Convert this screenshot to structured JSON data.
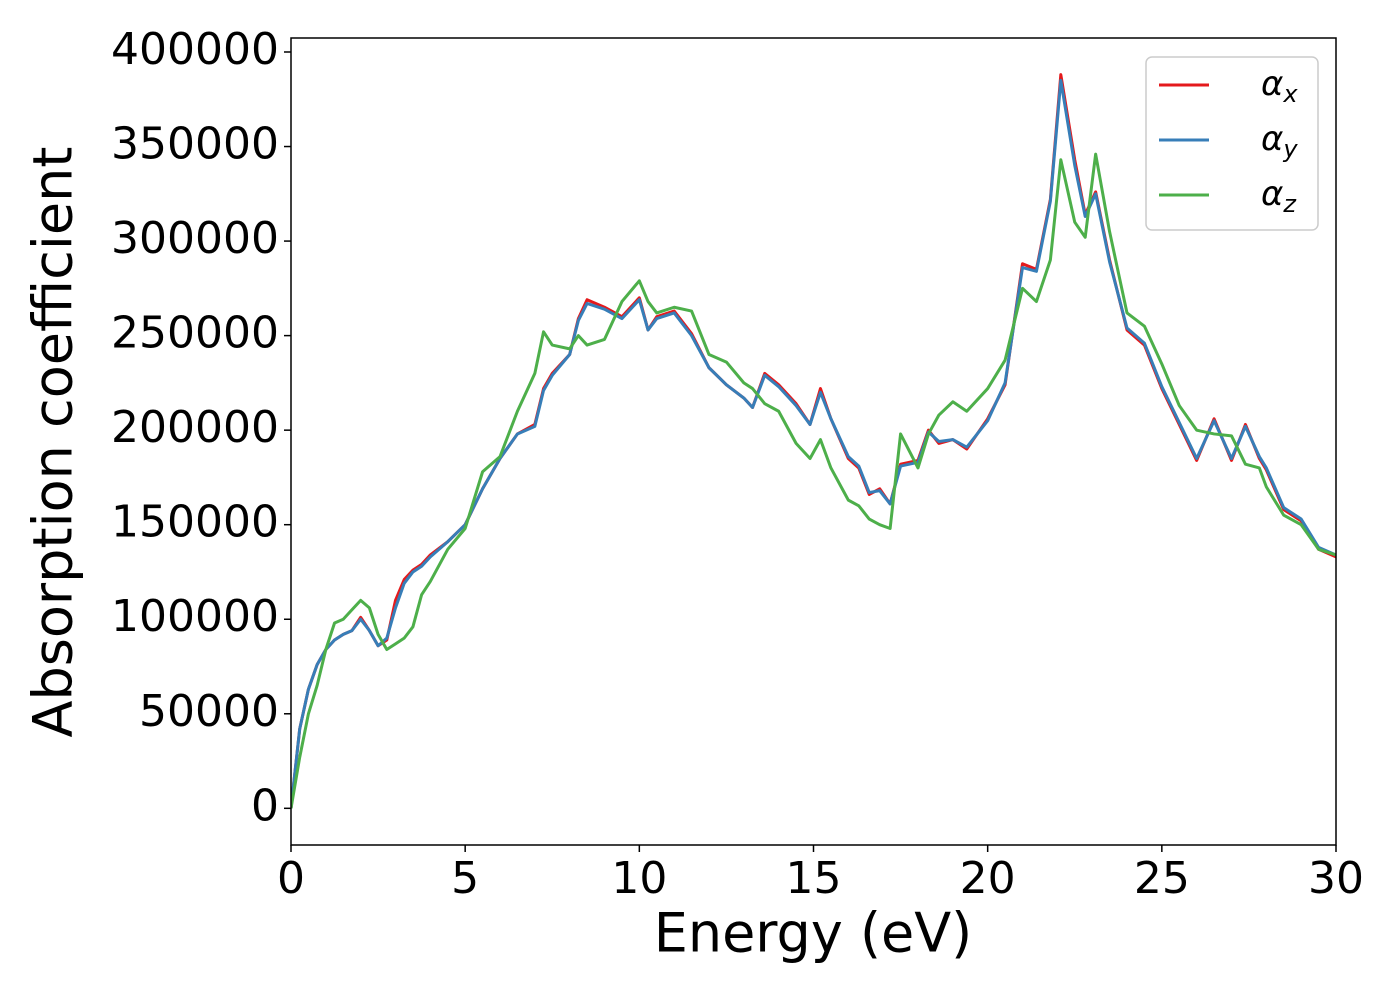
{
  "chart_data": {
    "type": "line",
    "xlabel": "Energy (eV)",
    "ylabel": "Absorption coefficient",
    "xlim": [
      0,
      30
    ],
    "ylim": [
      -19400,
      407400
    ],
    "xticks": [
      0,
      5,
      10,
      15,
      20,
      25,
      30
    ],
    "yticks": [
      0,
      50000,
      100000,
      150000,
      200000,
      250000,
      300000,
      350000,
      400000
    ],
    "legend": "upper right",
    "x": [
      0,
      0.25,
      0.5,
      0.75,
      1,
      1.25,
      1.5,
      1.75,
      2,
      2.25,
      2.5,
      2.75,
      3,
      3.25,
      3.5,
      3.75,
      4,
      4.5,
      5,
      5.5,
      6,
      6.5,
      7,
      7.25,
      7.5,
      8,
      8.25,
      8.5,
      9,
      9.5,
      10,
      10.25,
      10.5,
      11,
      11.5,
      12,
      12.5,
      13,
      13.25,
      13.6,
      14,
      14.5,
      14.9,
      15.2,
      15.5,
      16,
      16.3,
      16.6,
      16.9,
      17.2,
      17.5,
      18,
      18.3,
      18.6,
      19,
      19.4,
      20,
      20.5,
      21,
      21.4,
      21.8,
      22.1,
      22.5,
      22.8,
      23.1,
      23.5,
      24,
      24.5,
      25,
      25.5,
      26,
      26.5,
      27,
      27.4,
      27.8,
      28,
      28.5,
      29,
      29.5,
      30
    ],
    "series": [
      {
        "name": "αx",
        "color": "#e41a1c",
        "values": [
          0,
          42000,
          63000,
          76000,
          84000,
          89000,
          92000,
          94000,
          101000,
          94000,
          86000,
          89000,
          110000,
          121000,
          126000,
          129000,
          134000,
          141000,
          150000,
          169000,
          185000,
          198000,
          203000,
          222000,
          230000,
          240000,
          259000,
          269000,
          265000,
          260000,
          270000,
          253000,
          260000,
          263000,
          251000,
          233000,
          224000,
          217000,
          212000,
          230000,
          224000,
          214000,
          203000,
          222000,
          206000,
          185000,
          180000,
          166000,
          169000,
          161000,
          182000,
          184000,
          200000,
          193000,
          195000,
          190000,
          206000,
          224000,
          288000,
          285000,
          322000,
          388000,
          343000,
          314000,
          326000,
          290000,
          253000,
          245000,
          222000,
          203000,
          184000,
          206000,
          184000,
          203000,
          185000,
          179000,
          158000,
          152000,
          137000,
          133000
        ]
      },
      {
        "name": "αy",
        "color": "#377eb8",
        "values": [
          0,
          42000,
          63000,
          76000,
          84000,
          89000,
          92000,
          94000,
          100000,
          94000,
          86000,
          90000,
          106000,
          119000,
          125000,
          128000,
          133000,
          141000,
          150000,
          169000,
          185000,
          198000,
          202000,
          221000,
          229000,
          240000,
          258000,
          267000,
          264000,
          259000,
          269000,
          253000,
          259000,
          262000,
          250000,
          233000,
          224000,
          217000,
          212000,
          229000,
          223000,
          213000,
          203000,
          220000,
          206000,
          186000,
          181000,
          167000,
          168000,
          161000,
          181000,
          183000,
          199000,
          194000,
          195000,
          191000,
          205000,
          225000,
          286000,
          284000,
          321000,
          385000,
          340000,
          313000,
          325000,
          289000,
          254000,
          246000,
          223000,
          204000,
          185000,
          205000,
          185000,
          202000,
          186000,
          180000,
          159000,
          153000,
          138000,
          134000
        ]
      },
      {
        "name": "αz",
        "color": "#4daf4a",
        "values": [
          0,
          27000,
          50000,
          65000,
          84000,
          98000,
          100000,
          105000,
          110000,
          106000,
          92000,
          84000,
          87000,
          90000,
          96000,
          113000,
          120000,
          137000,
          148000,
          178000,
          186000,
          210000,
          230000,
          252000,
          245000,
          243000,
          250000,
          245000,
          248000,
          268000,
          279000,
          268000,
          262000,
          265000,
          263000,
          240000,
          236000,
          225000,
          222000,
          214000,
          210000,
          193000,
          185000,
          195000,
          180000,
          163000,
          160000,
          153000,
          150000,
          148000,
          198000,
          180000,
          198000,
          208000,
          215000,
          210000,
          222000,
          237000,
          275000,
          268000,
          290000,
          343000,
          310000,
          302000,
          346000,
          305000,
          262000,
          255000,
          235000,
          213000,
          200000,
          198000,
          197000,
          182000,
          180000,
          170000,
          155000,
          150000,
          137000,
          134000
        ]
      }
    ]
  }
}
